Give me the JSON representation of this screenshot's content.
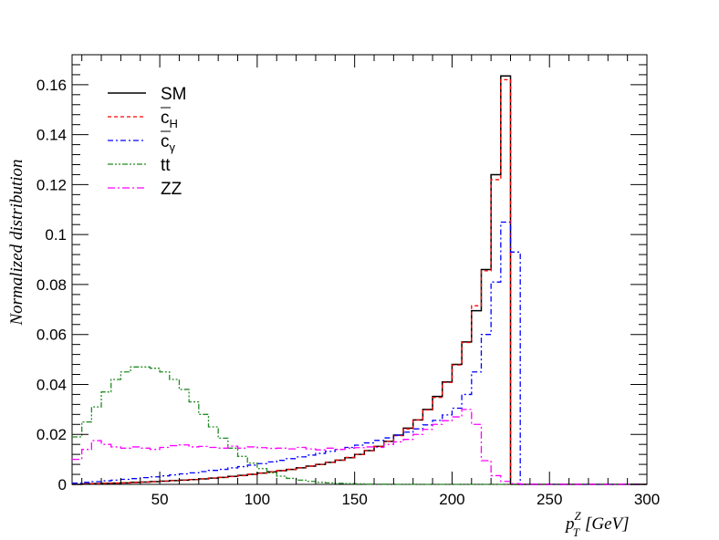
{
  "chart_data": {
    "type": "line",
    "style": "step-histogram",
    "xlabel": {
      "main": "p",
      "sup": "Z",
      "sub": "T",
      "unit": "[GeV]"
    },
    "ylabel": "Normalized distribution",
    "xlim": [
      5,
      300
    ],
    "ylim": [
      0,
      0.172
    ],
    "xticks": [
      50,
      100,
      150,
      200,
      250,
      300
    ],
    "yticks": [
      0,
      0.02,
      0.04,
      0.06,
      0.08,
      0.1,
      0.12,
      0.14,
      0.16
    ],
    "ytick_labels": [
      "0",
      "0.02",
      "0.04",
      "0.06",
      "0.08",
      "0.1",
      "0.12",
      "0.14",
      "0.16"
    ],
    "grid": false,
    "legend_position": "top-left",
    "bin_width": 5,
    "bin_start": 5,
    "series": [
      {
        "name": "SM",
        "legend_main": "SM",
        "legend_sub": "",
        "overline": false,
        "color": "#000000",
        "dash": "",
        "values": [
          0,
          0.0002,
          0.0003,
          0.0004,
          0.0005,
          0.0006,
          0.0008,
          0.0009,
          0.0011,
          0.0013,
          0.0015,
          0.0017,
          0.0019,
          0.0022,
          0.0025,
          0.0028,
          0.0032,
          0.0036,
          0.004,
          0.0045,
          0.005,
          0.0055,
          0.006,
          0.0066,
          0.0073,
          0.008,
          0.0088,
          0.0097,
          0.0107,
          0.012,
          0.0135,
          0.0152,
          0.0172,
          0.0197,
          0.0225,
          0.0258,
          0.03,
          0.0352,
          0.041,
          0.048,
          0.057,
          0.0695,
          0.086,
          0.124,
          0.1635,
          0,
          0,
          0,
          0,
          0,
          0,
          0,
          0,
          0,
          0,
          0,
          0,
          0,
          0
        ]
      },
      {
        "name": "c̄_H",
        "legend_main": "c",
        "legend_sub": "H",
        "overline": true,
        "color": "#ff0000",
        "dash": "4,3",
        "values": [
          0,
          0.0002,
          0.0003,
          0.0004,
          0.0005,
          0.0006,
          0.0007,
          0.0009,
          0.0011,
          0.0013,
          0.0015,
          0.0017,
          0.0019,
          0.0022,
          0.0025,
          0.0028,
          0.0031,
          0.0035,
          0.004,
          0.0045,
          0.005,
          0.0055,
          0.006,
          0.0066,
          0.0073,
          0.008,
          0.0088,
          0.0097,
          0.0108,
          0.012,
          0.0135,
          0.0152,
          0.0172,
          0.0195,
          0.0222,
          0.0258,
          0.0298,
          0.0348,
          0.0408,
          0.0478,
          0.0568,
          0.0715,
          0.0855,
          0.122,
          0.162,
          0,
          0,
          0,
          0,
          0,
          0,
          0,
          0,
          0,
          0,
          0,
          0,
          0,
          0
        ]
      },
      {
        "name": "c̄_γ",
        "legend_main": "c",
        "legend_sub": "γ",
        "overline": true,
        "color": "#0000ff",
        "dash": "6,3,2,3",
        "values": [
          0.0005,
          0.0008,
          0.0011,
          0.0014,
          0.0017,
          0.002,
          0.0023,
          0.0027,
          0.003,
          0.0034,
          0.0038,
          0.0042,
          0.0046,
          0.0051,
          0.0056,
          0.006,
          0.0066,
          0.0071,
          0.0077,
          0.0083,
          0.009,
          0.0096,
          0.0103,
          0.011,
          0.0117,
          0.0124,
          0.0132,
          0.014,
          0.0148,
          0.0157,
          0.0166,
          0.0176,
          0.0186,
          0.0197,
          0.0209,
          0.0222,
          0.0238,
          0.0256,
          0.0278,
          0.0305,
          0.036,
          0.045,
          0.06,
          0.081,
          0.105,
          0.093,
          0,
          0,
          0,
          0,
          0,
          0,
          0,
          0,
          0,
          0,
          0,
          0,
          0
        ]
      },
      {
        "name": "tt̄",
        "legend_main": "tt",
        "legend_sub": "",
        "overline": false,
        "color": "#228b22",
        "dash": "6,2,2,2,2,2",
        "values": [
          0.019,
          0.025,
          0.031,
          0.037,
          0.042,
          0.045,
          0.047,
          0.047,
          0.0465,
          0.045,
          0.042,
          0.038,
          0.033,
          0.028,
          0.023,
          0.0185,
          0.0145,
          0.0112,
          0.0085,
          0.0063,
          0.0046,
          0.0033,
          0.0024,
          0.0017,
          0.0012,
          0.0008,
          0.0006,
          0.0004,
          0.0003,
          0.0002,
          0.0001,
          0.0001,
          0.0001,
          0,
          0,
          0,
          0,
          0,
          0,
          0,
          0,
          0,
          0,
          0,
          0,
          0,
          0,
          0,
          0,
          0,
          0,
          0,
          0,
          0,
          0,
          0,
          0,
          0,
          0
        ]
      },
      {
        "name": "ZZ",
        "legend_main": "ZZ",
        "legend_sub": "",
        "overline": false,
        "color": "#ff00ff",
        "dash": "8,3,2,3",
        "values": [
          0.01,
          0.014,
          0.0175,
          0.016,
          0.015,
          0.0145,
          0.015,
          0.0145,
          0.014,
          0.0148,
          0.0155,
          0.0158,
          0.015,
          0.0152,
          0.0148,
          0.0145,
          0.0153,
          0.0145,
          0.015,
          0.0147,
          0.0144,
          0.0145,
          0.0142,
          0.0148,
          0.0142,
          0.0138,
          0.0145,
          0.014,
          0.0145,
          0.0147,
          0.015,
          0.0148,
          0.016,
          0.017,
          0.018,
          0.02,
          0.022,
          0.024,
          0.0255,
          0.027,
          0.03,
          0.024,
          0.0095,
          0.0035,
          0.0012,
          0.0003,
          0.0001,
          0,
          0,
          0,
          0,
          0,
          0,
          0,
          0,
          0,
          0,
          0,
          0
        ]
      }
    ]
  }
}
